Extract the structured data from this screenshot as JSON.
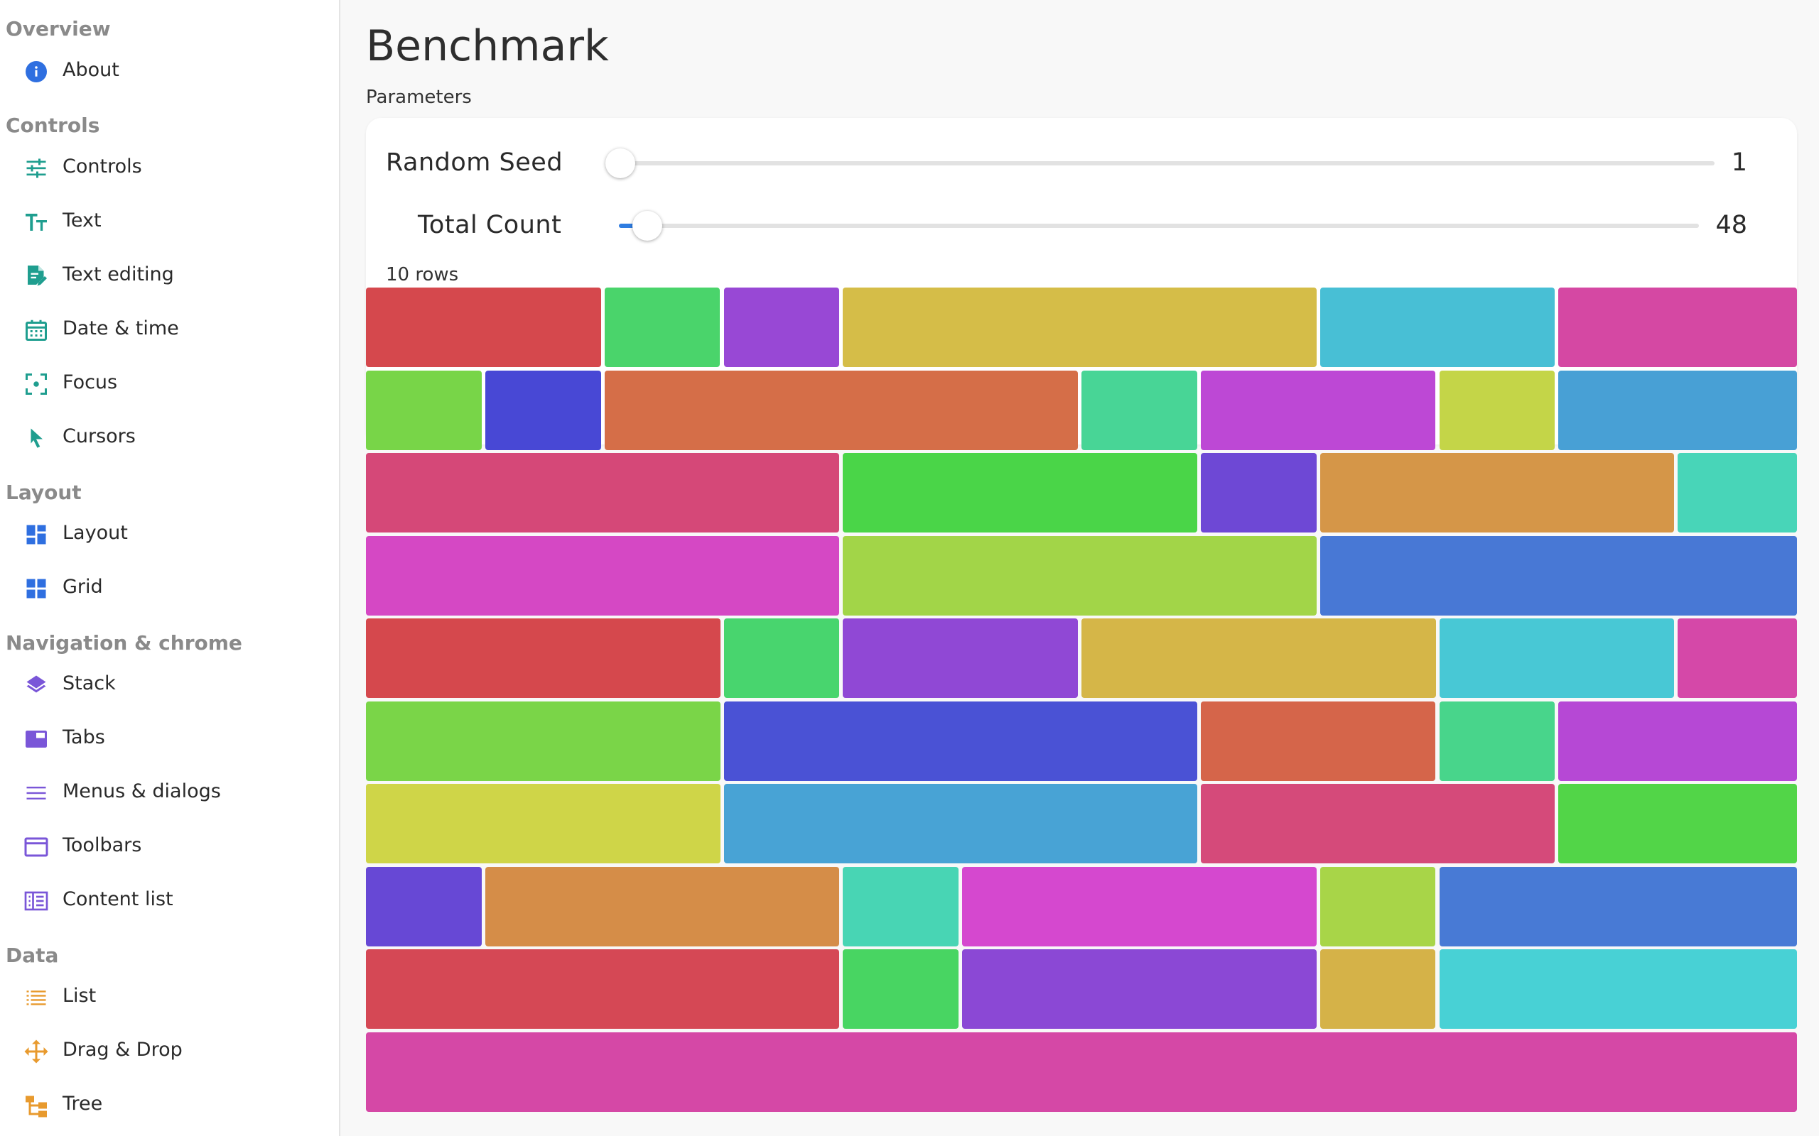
{
  "sidebar": {
    "sections": [
      {
        "title": "Overview",
        "items": [
          {
            "label": "About",
            "icon": "info-icon",
            "color": "#2f6fe0"
          }
        ]
      },
      {
        "title": "Controls",
        "items": [
          {
            "label": "Controls",
            "icon": "tune-sliders-icon",
            "color": "#1f9e8f"
          },
          {
            "label": "Text",
            "icon": "text-size-icon",
            "color": "#1f9e8f"
          },
          {
            "label": "Text editing",
            "icon": "edit-document-icon",
            "color": "#1f9e8f"
          },
          {
            "label": "Date & time",
            "icon": "calendar-icon",
            "color": "#1f9e8f"
          },
          {
            "label": "Focus",
            "icon": "focus-target-icon",
            "color": "#1f9e8f"
          },
          {
            "label": "Cursors",
            "icon": "cursor-arrow-icon",
            "color": "#1f9e8f"
          }
        ]
      },
      {
        "title": "Layout",
        "items": [
          {
            "label": "Layout",
            "icon": "dashboard-layout-icon",
            "color": "#2f6fe0"
          },
          {
            "label": "Grid",
            "icon": "grid-icon",
            "color": "#2f6fe0"
          }
        ]
      },
      {
        "title": "Navigation & chrome",
        "items": [
          {
            "label": "Stack",
            "icon": "layers-stack-icon",
            "color": "#7a56d8"
          },
          {
            "label": "Tabs",
            "icon": "tab-icon",
            "color": "#7a56d8"
          },
          {
            "label": "Menus & dialogs",
            "icon": "menu-lines-icon",
            "color": "#7a56d8"
          },
          {
            "label": "Toolbars",
            "icon": "window-toolbar-icon",
            "color": "#7a56d8"
          },
          {
            "label": "Content list",
            "icon": "content-list-icon",
            "color": "#7a56d8"
          }
        ]
      },
      {
        "title": "Data",
        "items": [
          {
            "label": "List",
            "icon": "list-icon",
            "color": "#e89a2e"
          },
          {
            "label": "Drag & Drop",
            "icon": "move-arrows-icon",
            "color": "#e89a2e"
          },
          {
            "label": "Tree",
            "icon": "tree-structure-icon",
            "color": "#e89a2e"
          }
        ]
      }
    ]
  },
  "main": {
    "title": "Benchmark",
    "params_label": "Parameters",
    "sliders": [
      {
        "label": "Random Seed",
        "value": "1",
        "fraction": 0.0
      },
      {
        "label": "Total Count",
        "value": "48",
        "fraction": 0.026
      }
    ],
    "rows_caption": "10 rows"
  },
  "blocks": {
    "rows": [
      {
        "spans": [
          2,
          1,
          1,
          4,
          2,
          2
        ],
        "colors": [
          "#d5484d",
          "#4ad46b",
          "#9848d5",
          "#d5bd48",
          "#48bfd5",
          "#d548a3"
        ]
      },
      {
        "spans": [
          1,
          1,
          4,
          1,
          2,
          1,
          2
        ],
        "colors": [
          "#78d548",
          "#4848d5",
          "#d56e48",
          "#48d596",
          "#bd48d5",
          "#c4d548",
          "#48a0d5"
        ]
      },
      {
        "spans": [
          4,
          3,
          1,
          3,
          1
        ],
        "colors": [
          "#d54878",
          "#4ad548",
          "#6e48d5",
          "#d59648",
          "#48d5b8"
        ]
      },
      {
        "spans": [
          4,
          4,
          4
        ],
        "colors": [
          "#d548c4",
          "#a2d548",
          "#4878d5"
        ]
      },
      {
        "spans": [
          3,
          1,
          2,
          3,
          2,
          1
        ],
        "colors": [
          "#d5484d",
          "#48d56e",
          "#9048d5",
          "#d5b648",
          "#48c8d5",
          "#d548a8"
        ]
      },
      {
        "spans": [
          3,
          4,
          2,
          1,
          2
        ],
        "colors": [
          "#7ad548",
          "#4a52d5",
          "#d5654a",
          "#48d58b",
          "#b648d5"
        ]
      },
      {
        "spans": [
          3,
          4,
          3,
          2
        ],
        "colors": [
          "#cfd548",
          "#48a3d5",
          "#d54a7a",
          "#52d548"
        ]
      },
      {
        "spans": [
          1,
          3,
          1,
          3,
          1,
          3
        ],
        "colors": [
          "#6748d5",
          "#d58d48",
          "#48d5b4",
          "#d548cf",
          "#a8d548",
          "#487ad5"
        ]
      },
      {
        "spans": [
          4,
          1,
          3,
          1,
          3
        ],
        "colors": [
          "#d54855",
          "#48d562",
          "#8b48d5",
          "#d5b248",
          "#48d1d5"
        ]
      },
      {
        "spans": [
          12
        ],
        "colors": [
          "#d548a6"
        ]
      }
    ]
  }
}
